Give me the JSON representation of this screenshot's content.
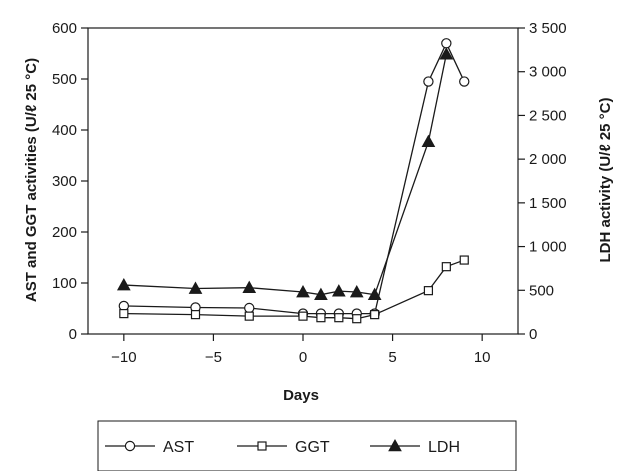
{
  "chart_data": {
    "type": "line",
    "xlabel": "Days",
    "ylabel_left": "AST and GGT activities (U/ℓ 25 °C)",
    "ylabel_right": "LDH activity (U/ℓ 25 °C)",
    "xlim": [
      -12,
      12
    ],
    "ylim_left": [
      0,
      600
    ],
    "ylim_right": [
      0,
      3500
    ],
    "x_ticks": [
      -10,
      -5,
      0,
      5,
      10
    ],
    "x_tick_labels": [
      "−10",
      "−5",
      "0",
      "5",
      "10"
    ],
    "y_left_ticks": [
      0,
      100,
      200,
      300,
      400,
      500,
      600
    ],
    "y_left_tick_labels": [
      "0",
      "100",
      "200",
      "300",
      "400",
      "500",
      "600"
    ],
    "y_right_ticks": [
      0,
      500,
      1000,
      1500,
      2000,
      2500,
      3000,
      3500
    ],
    "y_right_tick_labels": [
      "0",
      "500",
      "1 000",
      "1 500",
      "2 000",
      "2 500",
      "3 000",
      "3 500"
    ],
    "grid": false,
    "legend_position": "bottom",
    "series": [
      {
        "name": "AST",
        "axis": "left",
        "marker": "circle",
        "x": [
          -10,
          -6,
          -3,
          0,
          1,
          2,
          3,
          4,
          7,
          8,
          9
        ],
        "y": [
          55,
          52,
          51,
          40,
          40,
          40,
          40,
          40,
          495,
          570,
          495
        ]
      },
      {
        "name": "GGT",
        "axis": "left",
        "marker": "square",
        "x": [
          -10,
          -6,
          -3,
          0,
          1,
          2,
          3,
          4,
          7,
          8,
          9
        ],
        "y": [
          40,
          38,
          35,
          35,
          32,
          32,
          30,
          38,
          85,
          132,
          145
        ]
      },
      {
        "name": "LDH",
        "axis": "right",
        "marker": "triangle",
        "x": [
          -10,
          -6,
          -3,
          0,
          1,
          2,
          3,
          4,
          7,
          8
        ],
        "y": [
          560,
          520,
          530,
          480,
          450,
          490,
          480,
          450,
          2200,
          3200
        ]
      }
    ]
  }
}
